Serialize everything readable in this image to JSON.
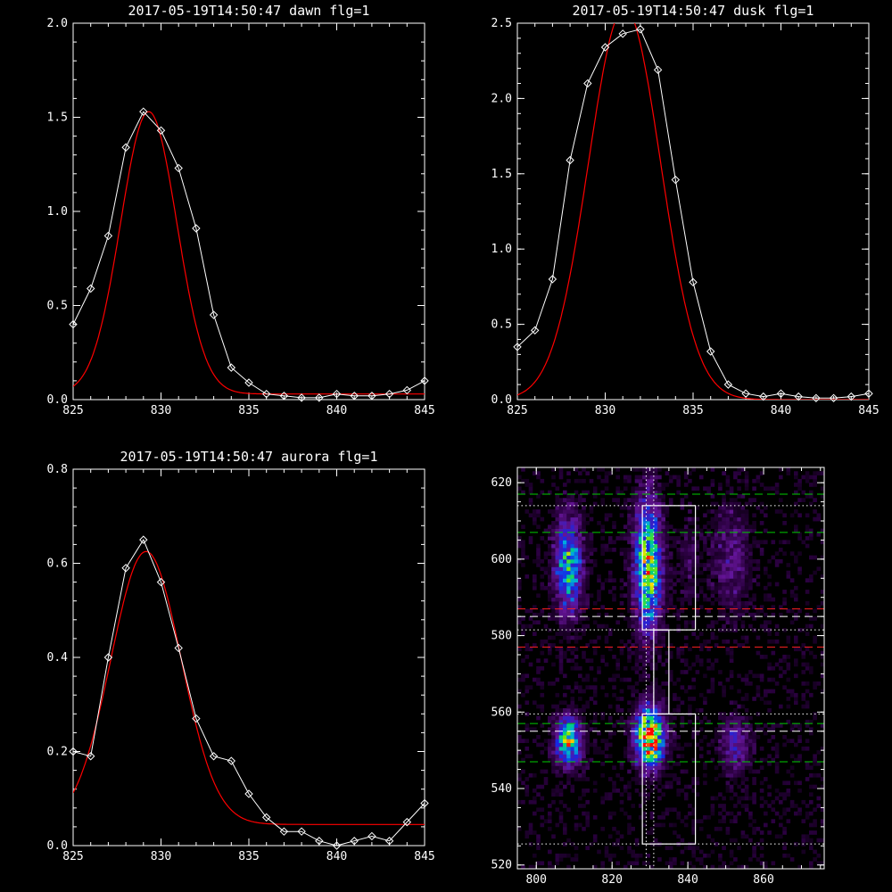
{
  "chart_data": [
    {
      "type": "line",
      "title": "2017-05-19T14:50:47 dawn flg=1",
      "xlabel": "",
      "ylabel": "",
      "xlim": [
        825,
        845
      ],
      "ylim": [
        0,
        2.0
      ],
      "xticks": [
        "825",
        "830",
        "835",
        "840",
        "845"
      ],
      "yticks": [
        "0.0",
        "0.5",
        "1.0",
        "1.5",
        "2.0"
      ],
      "series": [
        {
          "color": "#ffffff",
          "marker": "diamond",
          "x": [
            825,
            826,
            827,
            828,
            829,
            830,
            831,
            832,
            833,
            834,
            835,
            836,
            837,
            838,
            839,
            840,
            841,
            842,
            843,
            844,
            845
          ],
          "y": [
            0.4,
            0.59,
            0.87,
            1.34,
            1.53,
            1.43,
            1.23,
            0.91,
            0.45,
            0.17,
            0.09,
            0.03,
            0.02,
            0.01,
            0.01,
            0.03,
            0.02,
            0.02,
            0.03,
            0.05,
            0.1
          ]
        },
        {
          "color": "#ff0000",
          "marker": "none",
          "fit": {
            "a": 1.5,
            "mu": 829.3,
            "sigma": 1.6,
            "base": 0.03
          }
        }
      ]
    },
    {
      "type": "line",
      "title": "2017-05-19T14:50:47 dusk flg=1",
      "xlabel": "",
      "ylabel": "",
      "xlim": [
        825,
        845
      ],
      "ylim": [
        0,
        2.5
      ],
      "xticks": [
        "825",
        "830",
        "835",
        "840",
        "845"
      ],
      "yticks": [
        "0.0",
        "0.5",
        "1.0",
        "1.5",
        "2.0",
        "2.5"
      ],
      "series": [
        {
          "color": "#ffffff",
          "marker": "diamond",
          "x": [
            825,
            826,
            827,
            828,
            829,
            830,
            831,
            832,
            833,
            834,
            835,
            836,
            837,
            838,
            839,
            840,
            841,
            842,
            843,
            844,
            845
          ],
          "y": [
            0.35,
            0.46,
            0.8,
            1.59,
            2.1,
            2.34,
            2.43,
            2.46,
            2.19,
            1.46,
            0.78,
            0.32,
            0.1,
            0.04,
            0.02,
            0.04,
            0.02,
            0.01,
            0.01,
            0.02,
            0.04
          ]
        },
        {
          "color": "#ff0000",
          "marker": "none",
          "fit": {
            "a": 2.6,
            "mu": 831.1,
            "sigma": 2.05,
            "base": 0.0
          }
        }
      ]
    },
    {
      "type": "line",
      "title": "2017-05-19T14:50:47 aurora flg=1",
      "xlabel": "",
      "ylabel": "",
      "xlim": [
        825,
        845
      ],
      "ylim": [
        0,
        0.8
      ],
      "xticks": [
        "825",
        "830",
        "835",
        "840",
        "845"
      ],
      "yticks": [
        "0.0",
        "0.2",
        "0.4",
        "0.6",
        "0.8"
      ],
      "series": [
        {
          "color": "#ffffff",
          "marker": "diamond",
          "x": [
            825,
            826,
            827,
            828,
            829,
            830,
            831,
            832,
            833,
            834,
            835,
            836,
            837,
            838,
            839,
            840,
            841,
            842,
            843,
            844,
            845
          ],
          "y": [
            0.2,
            0.19,
            0.4,
            0.59,
            0.65,
            0.56,
            0.42,
            0.27,
            0.19,
            0.18,
            0.11,
            0.06,
            0.03,
            0.03,
            0.01,
            0.0,
            0.01,
            0.02,
            0.01,
            0.05,
            0.09
          ]
        },
        {
          "color": "#ff0000",
          "marker": "none",
          "fit": {
            "a": 0.58,
            "mu": 829.15,
            "sigma": 2.0,
            "base": 0.045
          }
        }
      ]
    },
    {
      "type": "heatmap",
      "title": "",
      "xlabel": "",
      "ylabel": "",
      "xlim": [
        795,
        876
      ],
      "ylim": [
        519,
        624
      ],
      "xticks": [
        "800",
        "820",
        "840",
        "860"
      ],
      "yticks": [
        "520",
        "540",
        "560",
        "580",
        "600",
        "620"
      ],
      "blobs": [
        {
          "x": 808,
          "y": 598,
          "sx": 2.6,
          "sy": 9,
          "amp": 0.6
        },
        {
          "x": 829,
          "y": 598,
          "sx": 2.5,
          "sy": 12,
          "amp": 0.8
        },
        {
          "x": 829.5,
          "y": 553,
          "sx": 2.7,
          "sy": 5.5,
          "amp": 1.0
        },
        {
          "x": 808,
          "y": 552,
          "sx": 2.4,
          "sy": 4.5,
          "amp": 0.75
        },
        {
          "x": 851,
          "y": 600,
          "sx": 3.5,
          "sy": 10,
          "amp": 0.22
        },
        {
          "x": 852,
          "y": 551,
          "sx": 2.5,
          "sy": 5,
          "amp": 0.35
        },
        {
          "x": 840,
          "y": 600,
          "sx": 2,
          "sy": 8,
          "amp": 0.12
        }
      ],
      "hlines": [
        {
          "y": 617,
          "color": "#00cc00",
          "style": "dash"
        },
        {
          "y": 607,
          "color": "#00cc00",
          "style": "dash"
        },
        {
          "y": 614,
          "color": "#ffffff",
          "style": "dot"
        },
        {
          "y": 587,
          "color": "#ff2020",
          "style": "dash"
        },
        {
          "y": 585,
          "color": "#ffffff",
          "style": "dash"
        },
        {
          "y": 581.5,
          "color": "#ffffff",
          "style": "dot"
        },
        {
          "y": 577,
          "color": "#ff2020",
          "style": "dash"
        },
        {
          "y": 559.5,
          "color": "#ffffff",
          "style": "dot"
        },
        {
          "y": 557,
          "color": "#00cc00",
          "style": "dash"
        },
        {
          "y": 555,
          "color": "#ffffff",
          "style": "dash"
        },
        {
          "y": 547,
          "color": "#00cc00",
          "style": "dash"
        },
        {
          "y": 525.5,
          "color": "#ffffff",
          "style": "dot"
        }
      ],
      "vlines": [
        {
          "x": 829,
          "color": "#ffffff",
          "style": "dot"
        },
        {
          "x": 831,
          "color": "#ffffff",
          "style": "dot"
        }
      ],
      "boxes": [
        {
          "x0": 828,
          "x1": 842,
          "y0": 581.5,
          "y1": 614
        },
        {
          "x0": 831,
          "x1": 835,
          "y0": 559.5,
          "y1": 581.5
        },
        {
          "x0": 828,
          "x1": 842,
          "y0": 525.5,
          "y1": 559.5
        }
      ]
    }
  ]
}
